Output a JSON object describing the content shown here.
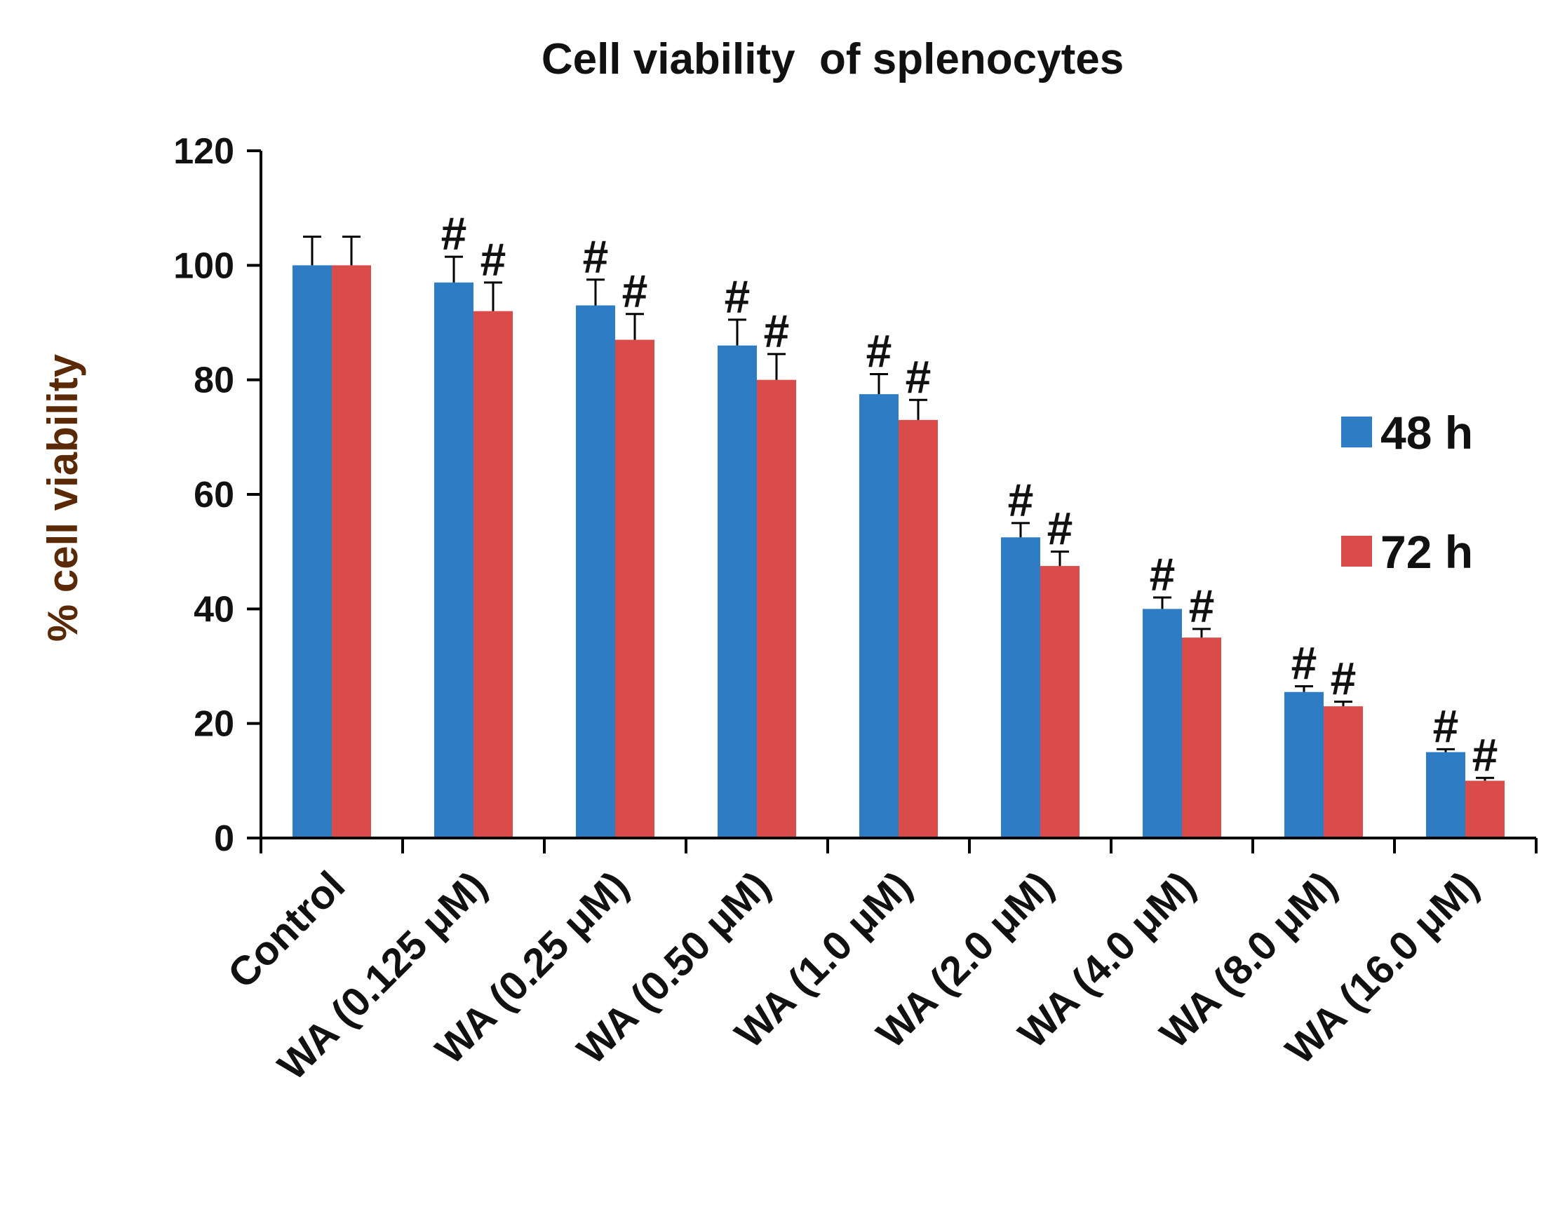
{
  "chart_data": {
    "type": "bar",
    "title": "Cell viability  of splenocytes",
    "xlabel": "",
    "ylabel": "% cell viability",
    "ylim": [
      0,
      120
    ],
    "yticks": [
      "0",
      "20",
      "40",
      "60",
      "80",
      "100",
      "120"
    ],
    "ytick_values": [
      0,
      20,
      40,
      60,
      80,
      100,
      120
    ],
    "categories": [
      "Control",
      "WA (0.125 μM)",
      "WA (0.25 μM)",
      "WA (0.50 μM)",
      "WA (1.0 μM)",
      "WA (2.0 μM)",
      "WA (4.0 μM)",
      "WA (8.0 μM)",
      "WA (16.0 μM)"
    ],
    "series": [
      {
        "name": "48 h",
        "color": "#2e7dc4",
        "values": [
          100,
          97,
          93,
          86,
          77.5,
          52.5,
          40,
          25.5,
          15
        ],
        "errors": [
          5,
          4.5,
          4.5,
          4.5,
          3.5,
          2.5,
          2,
          1,
          0.5
        ]
      },
      {
        "name": "72 h",
        "color": "#d94c4a",
        "values": [
          100,
          92,
          87,
          80,
          73,
          47.5,
          35,
          23,
          10
        ],
        "errors": [
          5,
          5,
          4.5,
          4.5,
          3.5,
          2.5,
          1.5,
          0.8,
          0.5
        ]
      }
    ],
    "significance_marker": "#",
    "significant": [
      [
        false,
        true,
        true,
        true,
        true,
        true,
        true,
        true,
        true
      ],
      [
        false,
        true,
        true,
        true,
        true,
        true,
        true,
        true,
        true
      ]
    ],
    "legend_position": "right"
  }
}
